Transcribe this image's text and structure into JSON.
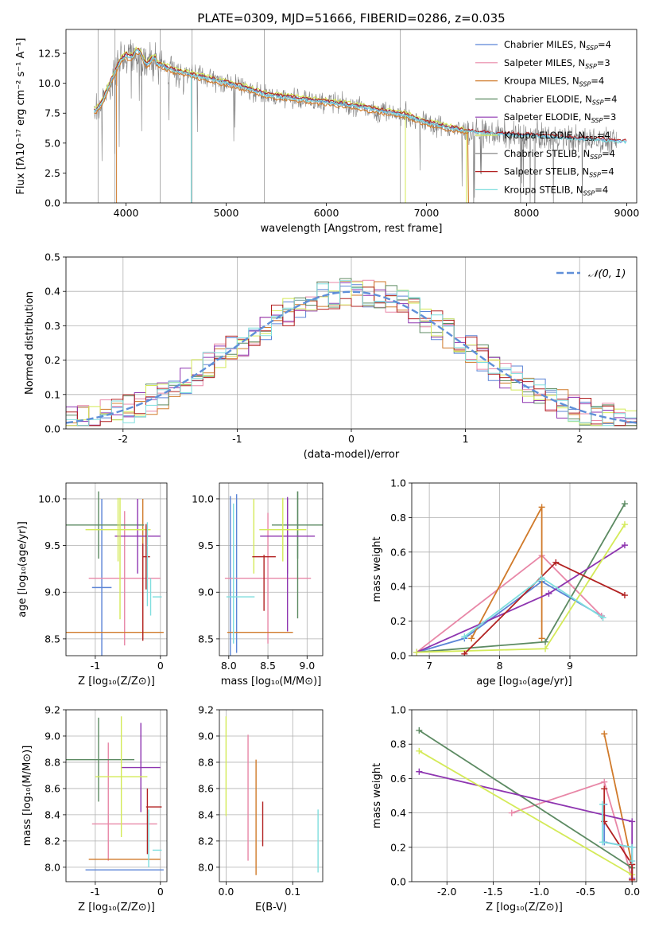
{
  "colors": {
    "chabrier_miles": "#5b84d6",
    "salpeter_miles": "#e887a7",
    "kroupa_miles": "#d07a2a",
    "chabrier_elodie": "#5c8a62",
    "salpeter_elodie": "#8e35b0",
    "kroupa_elodie": "#d4ea58",
    "chabrier_stelib": "#7f7f7f",
    "salpeter_stelib": "#b22222",
    "kroupa_stelib": "#7fdede",
    "normal_curve": "#5f8fd8"
  },
  "chart_data": [
    {
      "id": "spectrum",
      "type": "line",
      "title": "PLATE=0309, MJD=51666, FIBERID=0286, z=0.035",
      "xlabel": "wavelength [Angstrom, rest frame]",
      "ylabel": "Flux [fλ10⁻¹⁷ erg cm⁻² s⁻¹ A⁻¹]",
      "xlim": [
        3400,
        9100
      ],
      "ylim": [
        0,
        14.5
      ],
      "xticks": [
        4000,
        5000,
        6000,
        7000,
        8000,
        9000
      ],
      "yticks": [
        0.0,
        2.5,
        5.0,
        7.5,
        10.0,
        12.5
      ],
      "grid": false,
      "legend_position": "top-right",
      "legend": [
        {
          "label": "Chabrier MILES, N",
          "sub": "SSP",
          "value": "=4",
          "color_key": "chabrier_miles"
        },
        {
          "label": "Salpeter MILES, N",
          "sub": "SSP",
          "value": "=3",
          "color_key": "salpeter_miles"
        },
        {
          "label": "Kroupa MILES, N",
          "sub": "SSP",
          "value": "=4",
          "color_key": "kroupa_miles"
        },
        {
          "label": "Chabrier ELODIE, N",
          "sub": "SSP",
          "value": "=4",
          "color_key": "chabrier_elodie"
        },
        {
          "label": "Salpeter ELODIE, N",
          "sub": "SSP",
          "value": "=3",
          "color_key": "salpeter_elodie"
        },
        {
          "label": "Kroupa ELODIE, N",
          "sub": "SSP",
          "value": "=4",
          "color_key": "kroupa_elodie"
        },
        {
          "label": "Chabrier STELIB, N",
          "sub": "SSP",
          "value": "=4",
          "color_key": "chabrier_stelib"
        },
        {
          "label": "Salpeter STELIB, N",
          "sub": "SSP",
          "value": "=4",
          "color_key": "salpeter_stelib"
        },
        {
          "label": "Kroupa STELIB, N",
          "sub": "SSP",
          "value": "=4",
          "color_key": "kroupa_stelib"
        }
      ],
      "continuum": {
        "x": [
          3680,
          3750,
          3850,
          3950,
          4050,
          4150,
          4250,
          4350,
          4500,
          4700,
          4850,
          5000,
          5200,
          5400,
          5600,
          5800,
          6000,
          6200,
          6400,
          6600,
          6800,
          7000,
          7200,
          7400,
          7600,
          7800,
          8000,
          8200,
          8400,
          8600,
          8800,
          8900
        ],
        "y": [
          7.6,
          8.2,
          10.2,
          12.0,
          12.6,
          12.2,
          11.8,
          11.5,
          11.0,
          10.6,
          10.3,
          10.0,
          9.6,
          9.0,
          8.8,
          8.6,
          8.4,
          8.2,
          7.9,
          7.6,
          7.3,
          6.7,
          6.3,
          6.0,
          5.8,
          5.7,
          5.6,
          5.5,
          5.4,
          5.3,
          5.2,
          5.1
        ]
      }
    },
    {
      "id": "residuals",
      "type": "histogram",
      "xlabel": "(data-model)/error",
      "ylabel": "Normed distribution",
      "xlim": [
        -2.5,
        2.5
      ],
      "ylim": [
        0,
        0.5
      ],
      "xticks": [
        -2,
        -1,
        0,
        1,
        2
      ],
      "yticks": [
        0.0,
        0.1,
        0.2,
        0.3,
        0.4,
        0.5
      ],
      "grid": true,
      "legend_position": "top-right",
      "curve_label": "𝒩(0, 1)",
      "bin_width": 0.1,
      "bin_start": -2.5
    },
    {
      "id": "age_vs_Z",
      "type": "errorbar",
      "xlabel": "Z [log₁₀(Z/Z⊙)]",
      "ylabel": "age  [log₁₀(age/yr)]",
      "xlim": [
        -1.45,
        0.1
      ],
      "ylim": [
        8.32,
        10.17
      ],
      "xticks": [
        -1,
        0
      ],
      "yticks": [
        8.5,
        9.0,
        9.5,
        10.0
      ],
      "grid": true,
      "points": [
        {
          "c": "chabrier_miles",
          "x": -0.9,
          "xerr": 0.15,
          "y": 9.05,
          "yerr": 0.95
        },
        {
          "c": "salpeter_miles",
          "x": -0.55,
          "xerr": 0.55,
          "y": 9.15,
          "yerr": 0.72
        },
        {
          "c": "kroupa_miles",
          "x": -0.7,
          "xerr": 0.75,
          "y": 8.57,
          "yerr": 0.0
        },
        {
          "c": "kroupa_miles",
          "x": -0.27,
          "xerr": 0.0,
          "y": 9.25,
          "yerr": 0.75
        },
        {
          "c": "chabrier_elodie",
          "x": -0.95,
          "xerr": 0.7,
          "y": 9.72,
          "yerr": 0.36
        },
        {
          "c": "salpeter_elodie",
          "x": -0.35,
          "xerr": 0.35,
          "y": 9.6,
          "yerr": 0.4
        },
        {
          "c": "kroupa_elodie",
          "x": -0.65,
          "xerr": 0.5,
          "y": 9.67,
          "yerr": 0.34
        },
        {
          "c": "kroupa_elodie",
          "x": -0.62,
          "xerr": 0.0,
          "y": 9.36,
          "yerr": 0.65
        },
        {
          "c": "salpeter_stelib",
          "x": -0.22,
          "xerr": 0.06,
          "y": 9.38,
          "yerr": 0.35
        },
        {
          "c": "salpeter_stelib",
          "x": -0.27,
          "xerr": 0.0,
          "y": 9.0,
          "yerr": 0.52
        },
        {
          "c": "kroupa_stelib",
          "x": -0.2,
          "xerr": 0.0,
          "y": 9.3,
          "yerr": 0.45
        },
        {
          "c": "kroupa_stelib",
          "x": -0.15,
          "xerr": 0.0,
          "y": 8.95,
          "yerr": 0.2
        },
        {
          "c": "kroupa_stelib",
          "x": -0.05,
          "xerr": 0.07,
          "y": 8.95,
          "yerr": 0.0
        }
      ]
    },
    {
      "id": "age_vs_mass",
      "type": "errorbar",
      "xlabel": "mass [log₁₀(M/M⊙)]",
      "xlim": [
        7.88,
        9.2
      ],
      "ylim": [
        8.32,
        10.17
      ],
      "xticks": [
        8.0,
        8.5,
        9.0
      ],
      "yticks": [
        8.5,
        9.0,
        9.5,
        10.0
      ],
      "grid": true,
      "points": [
        {
          "c": "chabrier_miles",
          "x": 8.02,
          "xerr": 0.0,
          "y": 9.1,
          "yerr": 0.93
        },
        {
          "c": "chabrier_miles",
          "x": 8.1,
          "xerr": 0.0,
          "y": 9.2,
          "yerr": 0.85
        },
        {
          "c": "salpeter_miles",
          "x": 8.5,
          "xerr": 0.55,
          "y": 9.15,
          "yerr": 0.7
        },
        {
          "c": "kroupa_miles",
          "x": 8.4,
          "xerr": 0.42,
          "y": 8.57,
          "yerr": 0.0
        },
        {
          "c": "chabrier_elodie",
          "x": 8.88,
          "xerr": 0.33,
          "y": 9.72,
          "yerr": 0.36
        },
        {
          "c": "chabrier_elodie",
          "x": 8.88,
          "xerr": 0.0,
          "y": 9.4,
          "yerr": 0.68
        },
        {
          "c": "salpeter_elodie",
          "x": 8.75,
          "xerr": 0.35,
          "y": 9.6,
          "yerr": 0.4
        },
        {
          "c": "salpeter_elodie",
          "x": 8.75,
          "xerr": 0.0,
          "y": 9.3,
          "yerr": 0.72
        },
        {
          "c": "kroupa_elodie",
          "x": 8.69,
          "xerr": 0.3,
          "y": 9.67,
          "yerr": 0.34
        },
        {
          "c": "kroupa_elodie",
          "x": 8.32,
          "xerr": 0.0,
          "y": 9.6,
          "yerr": 0.4
        },
        {
          "c": "salpeter_stelib",
          "x": 8.45,
          "xerr": 0.15,
          "y": 9.38,
          "yerr": 0.0
        },
        {
          "c": "salpeter_stelib",
          "x": 8.45,
          "xerr": 0.0,
          "y": 9.1,
          "yerr": 0.3
        },
        {
          "c": "kroupa_stelib",
          "x": 8.15,
          "xerr": 0.18,
          "y": 8.95,
          "yerr": 0.0
        },
        {
          "c": "kroupa_stelib",
          "x": 8.06,
          "xerr": 0.0,
          "y": 9.2,
          "yerr": 0.75
        }
      ]
    },
    {
      "id": "weight_vs_age",
      "type": "line",
      "xlabel": "age  [log₁₀(age/yr)]",
      "ylabel": "mass weight",
      "xlim": [
        6.75,
        9.95
      ],
      "ylim": [
        0,
        1.0
      ],
      "xticks": [
        7,
        8,
        9
      ],
      "yticks": [
        0.0,
        0.2,
        0.4,
        0.6,
        0.8,
        1.0
      ],
      "grid": true,
      "series": [
        {
          "c": "chabrier_miles",
          "x": [
            6.82,
            7.5,
            8.6,
            9.45
          ],
          "y": [
            0.02,
            0.1,
            0.43,
            0.23
          ]
        },
        {
          "c": "salpeter_miles",
          "x": [
            6.82,
            8.6,
            9.45
          ],
          "y": [
            0.02,
            0.58,
            0.23
          ]
        },
        {
          "c": "kroupa_miles",
          "x": [
            7.6,
            8.6,
            8.6
          ],
          "y": [
            0.1,
            0.86,
            0.1
          ]
        },
        {
          "c": "chabrier_elodie",
          "x": [
            6.82,
            8.65,
            9.78
          ],
          "y": [
            0.02,
            0.08,
            0.88
          ]
        },
        {
          "c": "salpeter_elodie",
          "x": [
            6.82,
            8.7,
            9.78
          ],
          "y": [
            0.02,
            0.36,
            0.64
          ]
        },
        {
          "c": "kroupa_elodie",
          "x": [
            6.82,
            8.65,
            9.78
          ],
          "y": [
            0.02,
            0.04,
            0.76
          ]
        },
        {
          "c": "salpeter_stelib",
          "x": [
            7.5,
            8.8,
            9.78
          ],
          "y": [
            0.01,
            0.54,
            0.35
          ]
        },
        {
          "c": "kroupa_stelib",
          "x": [
            7.5,
            8.6,
            9.47
          ],
          "y": [
            0.11,
            0.45,
            0.22
          ]
        }
      ]
    },
    {
      "id": "mass_vs_Z",
      "type": "errorbar",
      "xlabel": "Z [log₁₀(Z/Z⊙)]",
      "ylabel": "mass [log₁₀(M/M⊙)]",
      "xlim": [
        -1.45,
        0.1
      ],
      "ylim": [
        7.89,
        9.2
      ],
      "xticks": [
        -1,
        0
      ],
      "yticks": [
        8.0,
        8.2,
        8.4,
        8.6,
        8.8,
        9.0,
        9.2
      ],
      "grid": true,
      "points": [
        {
          "c": "chabrier_miles",
          "x": -0.55,
          "xerr": 0.6,
          "y": 7.98,
          "yerr": 0.0
        },
        {
          "c": "salpeter_miles",
          "x": -0.55,
          "xerr": 0.5,
          "y": 8.33,
          "yerr": 0.0
        },
        {
          "c": "salpeter_miles",
          "x": -0.8,
          "xerr": 0.0,
          "y": 8.5,
          "yerr": 0.45
        },
        {
          "c": "kroupa_miles",
          "x": -0.55,
          "xerr": 0.55,
          "y": 8.06,
          "yerr": 0.0
        },
        {
          "c": "chabrier_elodie",
          "x": -0.95,
          "xerr": 0.55,
          "y": 8.82,
          "yerr": 0.32
        },
        {
          "c": "salpeter_elodie",
          "x": -0.3,
          "xerr": 0.3,
          "y": 8.76,
          "yerr": 0.34
        },
        {
          "c": "kroupa_elodie",
          "x": -0.6,
          "xerr": 0.4,
          "y": 8.69,
          "yerr": 0.46
        },
        {
          "c": "salpeter_stelib",
          "x": -0.1,
          "xerr": 0.12,
          "y": 8.46,
          "yerr": 0.0
        },
        {
          "c": "salpeter_stelib",
          "x": -0.2,
          "xerr": 0.0,
          "y": 8.35,
          "yerr": 0.25
        },
        {
          "c": "kroupa_stelib",
          "x": -0.05,
          "xerr": 0.07,
          "y": 8.13,
          "yerr": 0.0
        },
        {
          "c": "kroupa_stelib",
          "x": -0.18,
          "xerr": 0.0,
          "y": 8.22,
          "yerr": 0.22
        }
      ]
    },
    {
      "id": "mass_vs_ebv",
      "type": "errorbar",
      "xlabel": "E(B-V)",
      "xlim": [
        -0.01,
        0.145
      ],
      "ylim": [
        7.89,
        9.2
      ],
      "xticks": [
        0.0,
        0.1
      ],
      "yticks": [
        8.0,
        8.2,
        8.4,
        8.6,
        8.8,
        9.0,
        9.2
      ],
      "grid": true,
      "points": [
        {
          "c": "kroupa_elodie",
          "x": 0.0,
          "xerr": 0.0,
          "y": 8.77,
          "yerr": 0.38
        },
        {
          "c": "salpeter_miles",
          "x": 0.033,
          "xerr": 0.0,
          "y": 8.53,
          "yerr": 0.48
        },
        {
          "c": "kroupa_miles",
          "x": 0.045,
          "xerr": 0.0,
          "y": 8.38,
          "yerr": 0.44
        },
        {
          "c": "salpeter_stelib",
          "x": 0.055,
          "xerr": 0.0,
          "y": 8.33,
          "yerr": 0.17
        },
        {
          "c": "kroupa_stelib",
          "x": 0.138,
          "xerr": 0.0,
          "y": 8.2,
          "yerr": 0.24
        }
      ]
    },
    {
      "id": "weight_vs_Z",
      "type": "line",
      "xlabel": "Z [log₁₀(Z/Z⊙)]",
      "ylabel": "mass weight",
      "xlim": [
        -2.38,
        0.05
      ],
      "ylim": [
        0,
        1.0
      ],
      "xticks": [
        -2.0,
        -1.5,
        -1.0,
        -0.5,
        0.0
      ],
      "yticks": [
        0.0,
        0.2,
        0.4,
        0.6,
        0.8,
        1.0
      ],
      "grid": true,
      "series": [
        {
          "c": "chabrier_miles",
          "x": [
            -0.3,
            -0.3,
            0.0,
            0.0
          ],
          "y": [
            0.45,
            0.23,
            0.2,
            0.01
          ]
        },
        {
          "c": "salpeter_miles",
          "x": [
            -1.3,
            -0.3,
            0.0
          ],
          "y": [
            0.4,
            0.58,
            0.02
          ]
        },
        {
          "c": "kroupa_miles",
          "x": [
            -0.3,
            0.0,
            0.0
          ],
          "y": [
            0.86,
            0.1,
            0.01
          ]
        },
        {
          "c": "chabrier_elodie",
          "x": [
            -2.3,
            0.0,
            0.0
          ],
          "y": [
            0.88,
            0.08,
            0.01
          ]
        },
        {
          "c": "salpeter_elodie",
          "x": [
            -2.3,
            0.0,
            0.0
          ],
          "y": [
            0.64,
            0.35,
            0.02
          ]
        },
        {
          "c": "kroupa_elodie",
          "x": [
            -2.3,
            0.0,
            0.0
          ],
          "y": [
            0.76,
            0.04,
            0.01
          ]
        },
        {
          "c": "salpeter_stelib",
          "x": [
            -0.3,
            -0.3,
            0.0,
            0.0
          ],
          "y": [
            0.54,
            0.35,
            0.1,
            0.01
          ]
        },
        {
          "c": "kroupa_stelib",
          "x": [
            -0.32,
            -0.32,
            0.0,
            0.0
          ],
          "y": [
            0.45,
            0.23,
            0.2,
            0.12
          ]
        }
      ]
    }
  ]
}
